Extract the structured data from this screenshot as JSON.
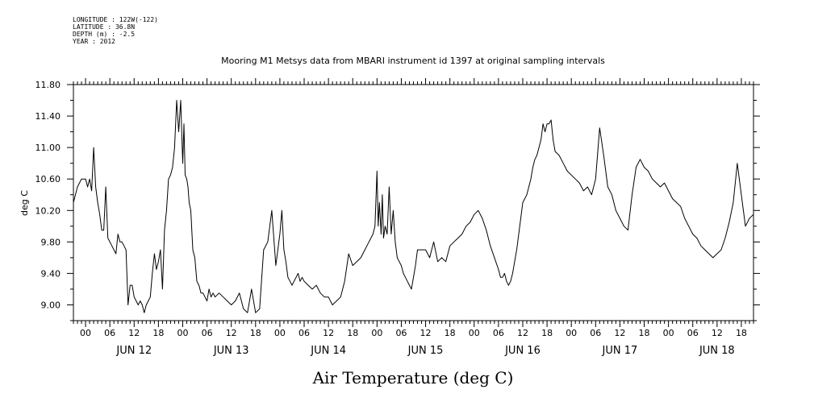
{
  "header": {
    "longitude": "LONGITUDE : 122W(-122)",
    "latitude": "LATITUDE : 36.8N",
    "depth": "DEPTH (m) : -2.5",
    "year": "YEAR : 2012"
  },
  "chart_data": {
    "type": "line",
    "title": "Mooring M1 Metsys data from MBARI instrument id 1397 at original sampling intervals",
    "xlabel": "Air Temperature (deg C)",
    "ylabel": "deg C",
    "ylim": [
      8.8,
      11.8
    ],
    "yticks": [
      "9.00",
      "9.40",
      "9.80",
      "10.20",
      "10.60",
      "11.00",
      "11.40",
      "11.80"
    ],
    "yvalues": [
      9.0,
      9.4,
      9.8,
      10.2,
      10.6,
      11.0,
      11.4,
      11.8
    ],
    "xlim_hours": [
      -3,
      165
    ],
    "hour_tick_labels": [
      "00",
      "06",
      "12",
      "18",
      "00",
      "06",
      "12",
      "18",
      "00",
      "06",
      "12",
      "18",
      "00",
      "06",
      "12",
      "18",
      "00",
      "06",
      "12",
      "18",
      "00",
      "06",
      "12",
      "18",
      "00",
      "06",
      "12",
      "18"
    ],
    "day_labels": [
      "JUN 12",
      "JUN 13",
      "JUN 14",
      "JUN 15",
      "JUN 16",
      "JUN 17",
      "JUN 18"
    ],
    "grid": false,
    "series": [
      {
        "x_hours": [
          -3,
          -2,
          -1,
          0,
          0.5,
          1,
          1.5,
          2,
          2.5,
          3,
          3.5,
          4,
          4.5,
          5,
          5.5,
          6,
          6.5,
          7,
          7.5,
          8,
          8.5,
          9,
          9.5,
          10,
          10.5,
          11,
          11.5,
          12,
          12.5,
          13,
          13.5,
          14,
          14.5,
          15,
          15.5,
          16,
          16.5,
          17,
          17.5,
          18,
          18.5,
          19,
          19.5,
          20,
          20.5,
          21,
          21.5,
          22,
          22.5,
          23,
          23.5,
          24,
          24.3,
          24.6,
          25,
          25.3,
          25.6,
          26,
          26.5,
          27,
          27.5,
          28,
          28.5,
          29,
          29.5,
          30,
          30.5,
          31,
          31.5,
          32,
          33,
          34,
          35,
          36,
          37,
          38,
          39,
          40,
          41,
          42,
          43,
          44,
          45,
          46,
          47,
          48,
          48.5,
          49,
          49.5,
          50,
          50.5,
          51,
          51.5,
          52,
          52.5,
          53,
          53.5,
          54,
          55,
          56,
          57,
          58,
          59,
          60,
          61,
          62,
          63,
          64,
          65,
          66,
          67,
          68,
          69,
          70,
          70.5,
          71,
          71.5,
          72,
          72.3,
          72.6,
          73,
          73.3,
          73.6,
          74,
          74.5,
          75,
          75.5,
          76,
          76.5,
          77,
          77.5,
          78,
          78.5,
          79,
          79.5,
          80,
          80.5,
          81,
          81.5,
          82,
          83,
          84,
          85,
          86,
          87,
          88,
          89,
          90,
          91,
          92,
          93,
          94,
          95,
          96,
          97,
          98,
          99,
          100,
          101,
          102,
          102.5,
          103,
          103.5,
          104,
          104.5,
          105,
          105.5,
          106,
          106.5,
          107,
          107.5,
          108,
          108.5,
          109,
          109.5,
          110,
          110.5,
          111,
          111.5,
          112,
          112.5,
          113,
          113.5,
          114,
          114.5,
          115,
          115.5,
          116,
          117,
          118,
          119,
          120,
          121,
          122,
          123,
          124,
          125,
          126,
          127,
          128,
          129,
          130,
          131,
          132,
          133,
          134,
          135,
          136,
          137,
          138,
          139,
          140,
          141,
          142,
          143,
          144,
          145,
          146,
          147,
          148,
          149,
          150,
          151,
          152,
          153,
          154,
          155,
          156,
          157,
          158,
          159,
          160,
          161,
          162,
          163,
          164,
          165
        ],
        "values": [
          10.3,
          10.5,
          10.6,
          10.6,
          10.5,
          10.6,
          10.45,
          11.0,
          10.5,
          10.3,
          10.15,
          9.95,
          9.95,
          10.5,
          9.85,
          9.8,
          9.75,
          9.7,
          9.65,
          9.9,
          9.8,
          9.8,
          9.75,
          9.7,
          9.0,
          9.25,
          9.25,
          9.1,
          9.05,
          9.0,
          9.05,
          9.0,
          8.9,
          9.0,
          9.05,
          9.1,
          9.4,
          9.65,
          9.45,
          9.55,
          9.7,
          9.2,
          9.95,
          10.2,
          10.6,
          10.65,
          10.75,
          11.0,
          11.6,
          11.2,
          11.6,
          10.8,
          11.3,
          10.65,
          10.6,
          10.5,
          10.3,
          10.2,
          9.7,
          9.6,
          9.3,
          9.25,
          9.15,
          9.15,
          9.1,
          9.05,
          9.2,
          9.1,
          9.15,
          9.1,
          9.15,
          9.1,
          9.05,
          9.0,
          9.05,
          9.15,
          8.95,
          8.9,
          9.2,
          8.9,
          8.95,
          9.7,
          9.8,
          10.2,
          9.5,
          9.9,
          10.2,
          9.7,
          9.55,
          9.35,
          9.3,
          9.25,
          9.3,
          9.35,
          9.4,
          9.3,
          9.35,
          9.3,
          9.25,
          9.2,
          9.25,
          9.15,
          9.1,
          9.1,
          9.0,
          9.05,
          9.1,
          9.3,
          9.65,
          9.5,
          9.55,
          9.6,
          9.7,
          9.8,
          9.85,
          9.9,
          10.0,
          10.7,
          10.0,
          10.3,
          9.9,
          10.4,
          9.85,
          10.0,
          9.9,
          10.5,
          9.9,
          10.2,
          9.8,
          9.6,
          9.55,
          9.5,
          9.4,
          9.35,
          9.3,
          9.25,
          9.2,
          9.35,
          9.5,
          9.7,
          9.7,
          9.7,
          9.6,
          9.8,
          9.55,
          9.6,
          9.55,
          9.75,
          9.8,
          9.85,
          9.9,
          10.0,
          10.05,
          10.15,
          10.2,
          10.1,
          9.95,
          9.75,
          9.6,
          9.45,
          9.35,
          9.35,
          9.4,
          9.3,
          9.25,
          9.3,
          9.4,
          9.55,
          9.7,
          9.9,
          10.1,
          10.3,
          10.35,
          10.4,
          10.5,
          10.6,
          10.75,
          10.85,
          10.9,
          11.0,
          11.1,
          11.3,
          11.2,
          11.3,
          11.3,
          11.35,
          11.1,
          10.95,
          10.9,
          10.8,
          10.7,
          10.65,
          10.6,
          10.55,
          10.45,
          10.5,
          10.4,
          10.6,
          11.25,
          10.9,
          10.5,
          10.4,
          10.2,
          10.1,
          10.0,
          9.95,
          10.4,
          10.75,
          10.85,
          10.75,
          10.7,
          10.6,
          10.55,
          10.5,
          10.55,
          10.45,
          10.35,
          10.3,
          10.25,
          10.1,
          10.0,
          9.9,
          9.85,
          9.75,
          9.7,
          9.65,
          9.6,
          9.65,
          9.7,
          9.85,
          10.05,
          10.3,
          10.8,
          10.4,
          10.0,
          10.1,
          10.15
        ]
      }
    ]
  }
}
